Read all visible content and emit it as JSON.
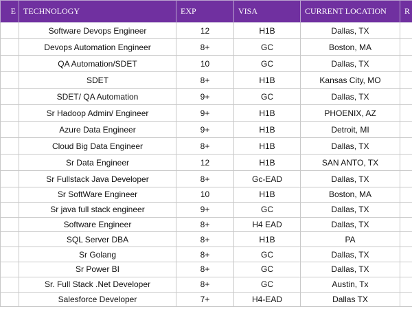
{
  "table": {
    "columns": [
      "E",
      "TECHNOLOGY",
      "EXP",
      "VISA",
      "CURRENT LOCATION",
      "R"
    ],
    "rows": [
      [
        "Software Devops Engineer",
        "12",
        "H1B",
        "Dallas, TX"
      ],
      [
        "Devops Automation Engineer",
        "8+",
        "GC",
        "Boston, MA"
      ],
      [
        "QA Automation/SDET",
        "10",
        "GC",
        "Dallas, TX"
      ],
      [
        "SDET",
        "8+",
        "H1B",
        "Kansas City, MO"
      ],
      [
        "SDET/ QA Automation",
        "9+",
        "GC",
        "Dallas, TX"
      ],
      [
        "Sr Hadoop Admin/ Engineer",
        "9+",
        "H1B",
        "PHOENIX, AZ"
      ],
      [
        "Azure Data Engineer",
        "9+",
        "H1B",
        "Detroit, MI"
      ],
      [
        "Cloud Big Data Engineer",
        "8+",
        "H1B",
        "Dallas, TX"
      ],
      [
        "Sr Data Engineer",
        "12",
        "H1B",
        "SAN ANTO, TX"
      ],
      [
        "Sr Fullstack Java Developer",
        "8+",
        "Gc-EAD",
        "Dallas, TX"
      ],
      [
        "Sr SoftWare Engineer",
        "10",
        "H1B",
        "Boston, MA"
      ],
      [
        "Sr java full stack engineer",
        "9+",
        "GC",
        "Dallas, TX"
      ],
      [
        "Software Engineer",
        "8+",
        "H4 EAD",
        "Dallas, TX"
      ],
      [
        "SQL Server DBA",
        "8+",
        "H1B",
        "PA"
      ],
      [
        "Sr Golang",
        "8+",
        "GC",
        "Dallas, TX"
      ],
      [
        "Sr Power BI",
        "8+",
        "GC",
        "Dallas, TX"
      ],
      [
        "Sr. Full Stack .Net Developer",
        "8+",
        "GC",
        "Austin, Tx"
      ],
      [
        "Salesforce Developer",
        "7+",
        "H4-EAD",
        "Dallas TX"
      ]
    ]
  }
}
